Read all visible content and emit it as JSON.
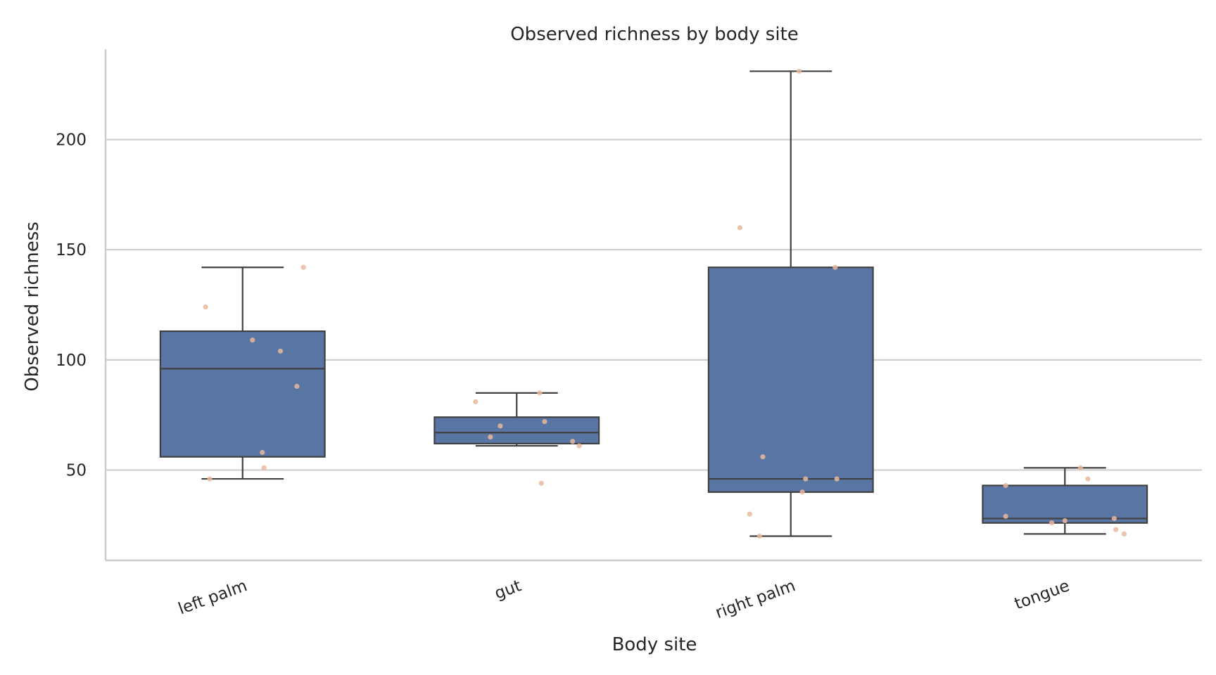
{
  "chart_data": {
    "type": "box",
    "title": "Observed richness by body site",
    "xlabel": "Body site",
    "ylabel": "Observed richness",
    "ylim": [
      9,
      241
    ],
    "yticks": [
      50,
      100,
      150,
      200
    ],
    "grid": "horizontal",
    "categories": [
      "left palm",
      "gut",
      "right palm",
      "tongue"
    ],
    "boxes": [
      {
        "category": "left palm",
        "whisker_low": 46,
        "q1": 56,
        "median": 96,
        "q3": 113,
        "whisker_high": 142
      },
      {
        "category": "gut",
        "whisker_low": 61,
        "q1": 62,
        "median": 67,
        "q3": 74,
        "whisker_high": 85
      },
      {
        "category": "right palm",
        "whisker_low": 20,
        "q1": 40,
        "median": 46,
        "q3": 142,
        "whisker_high": 231
      },
      {
        "category": "tongue",
        "whisker_low": 21,
        "q1": 26,
        "median": 28,
        "q3": 43,
        "whisker_high": 51
      }
    ],
    "points": [
      {
        "category": "left palm",
        "values": [
          124,
          142,
          109,
          104,
          88,
          58,
          51,
          46
        ]
      },
      {
        "category": "gut",
        "values": [
          81,
          85,
          70,
          72,
          65,
          63,
          61,
          44
        ]
      },
      {
        "category": "right palm",
        "values": [
          160,
          231,
          142,
          56,
          46,
          46,
          40,
          30,
          20
        ]
      },
      {
        "category": "tongue",
        "values": [
          43,
          51,
          46,
          29,
          26,
          27,
          28,
          23,
          21
        ]
      }
    ],
    "point_offsets": [
      [
        -0.45,
        0.74,
        0.12,
        0.46,
        0.66,
        0.24,
        0.26,
        -0.4
      ],
      [
        -0.5,
        0.28,
        -0.2,
        0.34,
        -0.32,
        0.68,
        0.76,
        0.3
      ],
      [
        -0.62,
        0.1,
        0.54,
        -0.34,
        0.18,
        0.56,
        0.14,
        -0.5,
        -0.38
      ],
      [
        -0.72,
        0.19,
        0.28,
        -0.72,
        -0.16,
        0.0,
        0.6,
        0.62,
        0.72
      ]
    ],
    "colors": {
      "box_fill": "#5875a4",
      "box_edge": "#404040",
      "point": "#e9b89f",
      "grid": "#cccccc",
      "axis": "#cccccc"
    }
  }
}
